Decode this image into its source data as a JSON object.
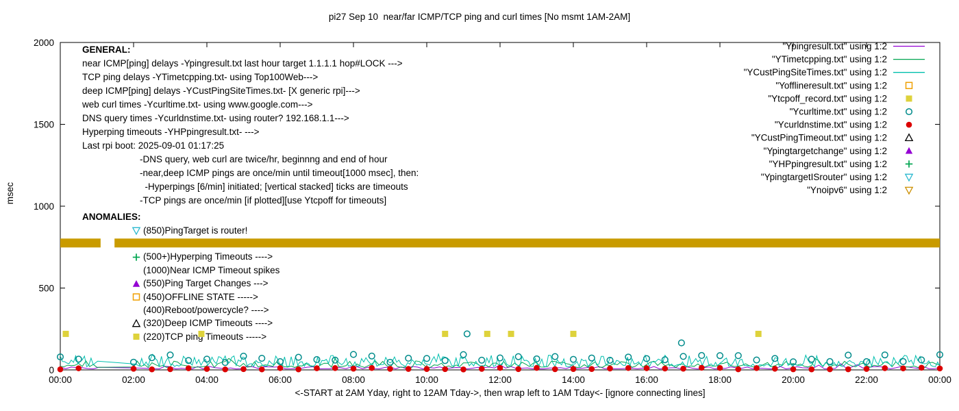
{
  "chart_data": {
    "type": "line+scatter",
    "title": "pi27 Sep 10  near/far ICMP/TCP ping and curl times [No msmt 1AM-2AM]",
    "ylabel": "msec",
    "xlabel": "<-START at 2AM Yday, right to 12AM Tday->, then wrap left to 1AM Tday<- [ignore connecting lines]",
    "xlim_hours": [
      0,
      24
    ],
    "ylim": [
      0,
      2000
    ],
    "grid": false,
    "legend_position": "top-right",
    "x_tick_hours": [
      0,
      2,
      4,
      6,
      8,
      10,
      12,
      14,
      16,
      18,
      20,
      22,
      24
    ],
    "x_tick_labels": [
      "00:00",
      "02:00",
      "04:00",
      "06:00",
      "08:00",
      "10:00",
      "12:00",
      "14:00",
      "16:00",
      "18:00",
      "20:00",
      "22:00",
      "00:00"
    ],
    "y_ticks": [
      0,
      500,
      1000,
      1500,
      2000
    ],
    "legend": [
      {
        "label": "\"Ypingresult.txt\" using 1:2",
        "type": "line",
        "color": "#9400d3"
      },
      {
        "label": "\"YTimetcpping.txt\" using 1:2",
        "type": "line",
        "color": "#00a550"
      },
      {
        "label": "\"YCustPingSiteTimes.txt\" using 1:2",
        "type": "line",
        "color": "#00bfae"
      },
      {
        "label": "\"Yofflineresult.txt\" using 1:2",
        "type": "square-open",
        "color": "#ef9f00"
      },
      {
        "label": "\"Ytcpoff_record.txt\" using 1:2",
        "type": "square-filled",
        "color": "#ded23b"
      },
      {
        "label": "\"Ycurltime.txt\" using 1:2",
        "type": "circle-open",
        "color": "#008b8b"
      },
      {
        "label": "\"Ycurldnstime.txt\" using 1:2",
        "type": "circle-filled",
        "color": "#dc0000"
      },
      {
        "label": "\"YCustPingTimeout.txt\" using 1:2",
        "type": "triangle-up-open",
        "color": "#000000"
      },
      {
        "label": "\"Ypingtargetchange\" using 1:2",
        "type": "triangle-up-filled",
        "color": "#9400d3"
      },
      {
        "label": "\"YHPpingresult.txt\" using 1:2",
        "type": "plus",
        "color": "#00a550"
      },
      {
        "label": "\"YpingtargetISrouter\" using 1:2",
        "type": "triangle-down-open",
        "color": "#2ab8cf"
      },
      {
        "label": "\"Ynoipv6\" using 1:2",
        "type": "triangle-down-open",
        "color": "#cc8f00"
      }
    ],
    "series": [
      {
        "id": "near_icmp_line",
        "label_ref": "Ypingresult.txt",
        "type": "line",
        "color": "#9400d3",
        "x_step_hours": 0.15,
        "y_min": 6,
        "y_max": 22,
        "gap_hours": [
          1.05,
          2.0
        ]
      },
      {
        "id": "tcp_ping_line",
        "label_ref": "YTimetcpping.txt",
        "type": "line",
        "color": "#00a550",
        "x_step_hours": 0.1,
        "y_min": 15,
        "y_max": 55,
        "gap_hours": [
          1.05,
          2.0
        ]
      },
      {
        "id": "deep_icmp_line",
        "label_ref": "YCustPingSiteTimes.txt",
        "type": "line",
        "color": "#00bfae",
        "x_step_hours": 0.06,
        "y_min": 20,
        "y_max": 90,
        "gap_hours": [
          1.05,
          2.0
        ]
      },
      {
        "id": "noipv6_band",
        "label_ref": "Ynoipv6",
        "type": "band",
        "color": "#c99b00",
        "y": 775,
        "thickness_msec": 55,
        "segments_hours": [
          [
            0,
            1.1
          ],
          [
            1.48,
            24
          ]
        ]
      },
      {
        "id": "tcp_timeout_squares",
        "label_ref": "Ytcpoff_record.txt",
        "type": "scatter",
        "marker": "square-filled",
        "color": "#ded23b",
        "points": [
          [
            0.15,
            220
          ],
          [
            3.85,
            220
          ],
          [
            10.5,
            220
          ],
          [
            11.65,
            220
          ],
          [
            12.3,
            220
          ],
          [
            14.0,
            220
          ],
          [
            19.05,
            220
          ]
        ]
      },
      {
        "id": "curl_circles",
        "label_ref": "Ycurltime.txt",
        "type": "scatter",
        "marker": "circle-open",
        "color": "#008b8b",
        "interval_hours": 0.5,
        "y_min": 45,
        "y_max": 95,
        "skip_hours": [
          0.75,
          1.75
        ],
        "extra_points": [
          [
            11.1,
            220
          ],
          [
            16.95,
            165
          ]
        ]
      },
      {
        "id": "dns_dots",
        "label_ref": "Ycurldnstime.txt",
        "type": "scatter",
        "marker": "circle-filled",
        "color": "#dc0000",
        "interval_hours": 0.5,
        "y_min": 3,
        "y_max": 14,
        "skip_hours": [
          0.75,
          1.75
        ]
      }
    ],
    "annotations": {
      "general": {
        "heading": "GENERAL:",
        "lines": [
          "near ICMP[ping] delays -Ypingresult.txt last hour target 1.1.1.1 hop#LOCK --->",
          "TCP ping delays -YTimetcpping.txt- using Top100Web--->",
          "deep ICMP[ping] delays -YCustPingSiteTimes.txt- [X generic rpi]--->",
          "web curl times -Ycurltime.txt- using www.google.com--->",
          "DNS query times -Ycurldnstime.txt- using router? 192.168.1.1--->",
          "Hyperping timeouts -YHPpingresult.txt- --->",
          "Last rpi boot: 2025-09-01 01:17:25"
        ],
        "notes": [
          "-DNS query, web curl are twice/hr, beginnng and end of hour",
          "-near,deep ICMP pings are once/min until timeout[1000 msec], then:",
          "  -Hyperpings [6/min] initiated; [vertical stacked] ticks are timeouts",
          "-TCP pings are once/min [if plotted][use Ytcpoff for timeouts]"
        ]
      },
      "anomalies": {
        "heading": "ANOMALIES:",
        "rows": [
          {
            "marker": "triangle-down-open",
            "color": "#2ab8cf",
            "text": "(850)PingTarget is router!"
          },
          {
            "marker": "",
            "color": "",
            "text": ""
          },
          {
            "marker": "plus",
            "color": "#00a550",
            "text": "(500+)Hyperping Timeouts ---->"
          },
          {
            "marker": "",
            "color": "",
            "text": "(1000)Near ICMP Timeout spikes"
          },
          {
            "marker": "triangle-up-filled",
            "color": "#9400d3",
            "text": "(550)Ping Target Changes --->"
          },
          {
            "marker": "square-open",
            "color": "#ef9f00",
            "text": "(450)OFFLINE STATE ----->"
          },
          {
            "marker": "",
            "color": "",
            "text": "(400)Reboot/powercycle? ---->"
          },
          {
            "marker": "triangle-up-open",
            "color": "#000000",
            "text": "(320)Deep ICMP Timeouts ---->"
          },
          {
            "marker": "square-filled",
            "color": "#ded23b",
            "text": "(220)TCP ping Timeouts ----->"
          }
        ]
      }
    }
  }
}
